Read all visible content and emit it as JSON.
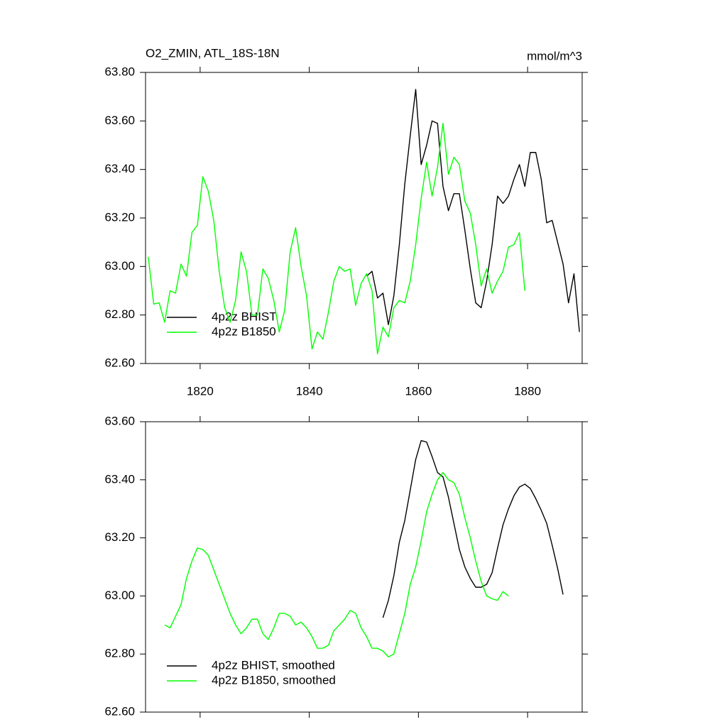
{
  "chart_data": [
    {
      "type": "line",
      "title": "O2_ZMIN, ATL_18S-18N",
      "units": "mmol/m^3",
      "x": [
        1810.5,
        1811.5,
        1812.5,
        1813.5,
        1814.5,
        1815.5,
        1816.5,
        1817.5,
        1818.5,
        1819.5,
        1820.5,
        1821.5,
        1822.5,
        1823.5,
        1824.5,
        1825.5,
        1826.5,
        1827.5,
        1828.5,
        1829.5,
        1830.5,
        1831.5,
        1832.5,
        1833.5,
        1834.5,
        1835.5,
        1836.5,
        1837.5,
        1838.5,
        1839.5,
        1840.5,
        1841.5,
        1842.5,
        1843.5,
        1844.5,
        1845.5,
        1846.5,
        1847.5,
        1848.5,
        1849.5,
        1850.5,
        1851.5,
        1852.5,
        1853.5,
        1854.5,
        1855.5,
        1856.5,
        1857.5,
        1858.5,
        1859.5,
        1860.5,
        1861.5,
        1862.5,
        1863.5,
        1864.5,
        1865.5,
        1866.5,
        1867.5,
        1868.5,
        1869.5,
        1870.5,
        1871.5,
        1872.5,
        1873.5,
        1874.5,
        1875.5,
        1876.5,
        1877.5,
        1878.5,
        1879.5,
        1880.5,
        1881.5,
        1882.5,
        1883.5,
        1884.5,
        1885.5,
        1886.5,
        1887.5,
        1888.5,
        1889.5
      ],
      "series": [
        {
          "name": "4p2z BHIST",
          "color": "#000000",
          "values": [
            null,
            null,
            null,
            null,
            null,
            null,
            null,
            null,
            null,
            null,
            null,
            null,
            null,
            null,
            null,
            null,
            null,
            null,
            null,
            null,
            null,
            null,
            null,
            null,
            null,
            null,
            null,
            null,
            null,
            null,
            null,
            null,
            null,
            null,
            null,
            null,
            null,
            null,
            null,
            null,
            62.96,
            62.98,
            62.87,
            62.89,
            62.76,
            62.88,
            63.09,
            63.34,
            63.54,
            63.73,
            63.42,
            63.5,
            63.6,
            63.59,
            63.33,
            63.23,
            63.3,
            63.3,
            63.15,
            62.99,
            62.85,
            62.83,
            62.94,
            63.09,
            63.29,
            63.26,
            63.29,
            63.36,
            63.42,
            63.33,
            63.47,
            63.47,
            63.36,
            63.18,
            63.19,
            63.1,
            63.01,
            62.85,
            62.97,
            62.73
          ]
        },
        {
          "name": "4p2z B1850",
          "color": "#00ff00",
          "values": [
            63.04,
            62.845,
            62.85,
            62.77,
            62.9,
            62.89,
            63.01,
            62.96,
            63.14,
            63.17,
            63.37,
            63.31,
            63.19,
            62.98,
            62.83,
            62.77,
            62.86,
            63.06,
            62.98,
            62.8,
            62.8,
            62.99,
            62.95,
            62.86,
            62.73,
            62.82,
            63.06,
            63.16,
            63.0,
            62.88,
            62.66,
            62.73,
            62.7,
            62.81,
            62.94,
            63.0,
            62.98,
            62.99,
            62.84,
            62.93,
            62.97,
            62.9,
            62.64,
            62.75,
            62.71,
            62.83,
            62.86,
            62.85,
            62.94,
            63.09,
            63.28,
            63.43,
            63.29,
            63.41,
            63.59,
            63.38,
            63.45,
            63.42,
            63.27,
            63.22,
            63.09,
            62.92,
            62.99,
            62.89,
            62.94,
            62.98,
            63.08,
            63.09,
            63.14,
            62.9,
            null,
            null,
            null,
            null,
            null,
            null,
            null,
            null,
            null,
            null
          ]
        }
      ],
      "xlim": [
        1810,
        1890
      ],
      "xticks": [
        1820,
        1840,
        1860,
        1880
      ],
      "show_xtick_labels": true,
      "ylim": [
        62.6,
        63.8
      ],
      "yticks": [
        {
          "value": 62.6,
          "label": "62.60"
        },
        {
          "value": 62.8,
          "label": "62.80"
        },
        {
          "value": 63.0,
          "label": "63.00"
        },
        {
          "value": 63.2,
          "label": "63.20"
        },
        {
          "value": 63.4,
          "label": "63.40"
        },
        {
          "value": 63.6,
          "label": "63.60"
        },
        {
          "value": 63.8,
          "label": "63.80"
        }
      ],
      "legend": "lower left"
    },
    {
      "type": "line",
      "x": [
        1810.5,
        1811.5,
        1812.5,
        1813.5,
        1814.5,
        1815.5,
        1816.5,
        1817.5,
        1818.5,
        1819.5,
        1820.5,
        1821.5,
        1822.5,
        1823.5,
        1824.5,
        1825.5,
        1826.5,
        1827.5,
        1828.5,
        1829.5,
        1830.5,
        1831.5,
        1832.5,
        1833.5,
        1834.5,
        1835.5,
        1836.5,
        1837.5,
        1838.5,
        1839.5,
        1840.5,
        1841.5,
        1842.5,
        1843.5,
        1844.5,
        1845.5,
        1846.5,
        1847.5,
        1848.5,
        1849.5,
        1850.5,
        1851.5,
        1852.5,
        1853.5,
        1854.5,
        1855.5,
        1856.5,
        1857.5,
        1858.5,
        1859.5,
        1860.5,
        1861.5,
        1862.5,
        1863.5,
        1864.5,
        1865.5,
        1866.5,
        1867.5,
        1868.5,
        1869.5,
        1870.5,
        1871.5,
        1872.5,
        1873.5,
        1874.5,
        1875.5,
        1876.5,
        1877.5,
        1878.5,
        1879.5,
        1880.5,
        1881.5,
        1882.5,
        1883.5,
        1884.5,
        1885.5,
        1886.5,
        1887.5,
        1888.5,
        1889.5
      ],
      "series": [
        {
          "name": "4p2z BHIST, smoothed",
          "color": "#000000",
          "values": [
            null,
            null,
            null,
            null,
            null,
            null,
            null,
            null,
            null,
            null,
            null,
            null,
            null,
            null,
            null,
            null,
            null,
            null,
            null,
            null,
            null,
            null,
            null,
            null,
            null,
            null,
            null,
            null,
            null,
            null,
            null,
            null,
            null,
            null,
            null,
            null,
            null,
            null,
            null,
            null,
            null,
            null,
            null,
            62.925,
            62.985,
            63.07,
            63.185,
            63.26,
            63.365,
            63.47,
            63.535,
            63.53,
            63.48,
            63.425,
            63.41,
            63.34,
            63.25,
            63.16,
            63.1,
            63.06,
            63.03,
            63.03,
            63.04,
            63.08,
            63.165,
            63.245,
            63.3,
            63.345,
            63.375,
            63.385,
            63.37,
            63.335,
            63.295,
            63.25,
            63.175,
            63.095,
            63.005,
            null,
            null,
            null
          ]
        },
        {
          "name": "4p2z B1850, smoothed",
          "color": "#00ff00",
          "values": [
            null,
            null,
            null,
            62.9,
            62.89,
            62.93,
            62.97,
            63.06,
            63.12,
            63.165,
            63.16,
            63.14,
            63.09,
            63.04,
            62.99,
            62.94,
            62.9,
            62.87,
            62.89,
            62.92,
            62.92,
            62.87,
            62.85,
            62.89,
            62.94,
            62.94,
            62.93,
            62.9,
            62.91,
            62.89,
            62.86,
            62.82,
            62.82,
            62.83,
            62.88,
            62.9,
            62.92,
            62.95,
            62.94,
            62.89,
            62.86,
            62.82,
            62.82,
            62.81,
            62.79,
            62.8,
            62.87,
            62.94,
            63.04,
            63.1,
            63.19,
            63.29,
            63.35,
            63.4,
            63.425,
            63.4,
            63.39,
            63.35,
            63.27,
            63.2,
            63.12,
            63.05,
            63.0,
            62.99,
            62.985,
            63.015,
            63.0,
            null,
            null,
            null,
            null,
            null,
            null,
            null,
            null,
            null,
            null,
            null,
            null,
            null
          ]
        }
      ],
      "xlim": [
        1810,
        1890
      ],
      "xticks": [
        1820,
        1840,
        1860,
        1880
      ],
      "show_xtick_labels": false,
      "ylim": [
        62.6,
        63.6
      ],
      "yticks": [
        {
          "value": 62.6,
          "label": "62.60"
        },
        {
          "value": 62.8,
          "label": "62.80"
        },
        {
          "value": 63.0,
          "label": "63.00"
        },
        {
          "value": 63.2,
          "label": "63.20"
        },
        {
          "value": 63.4,
          "label": "63.40"
        },
        {
          "value": 63.6,
          "label": "63.60"
        }
      ],
      "legend": "lower left"
    }
  ]
}
